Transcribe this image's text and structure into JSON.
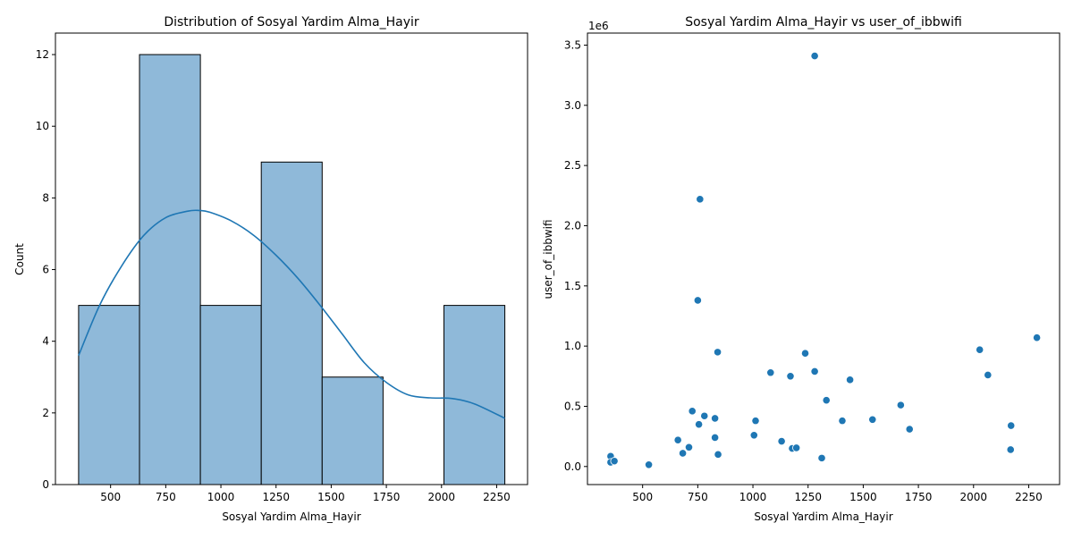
{
  "chart_data": [
    {
      "type": "histogram",
      "title": "Distribution of Sosyal Yardim Alma_Hayir",
      "xlabel": "Sosyal Yardim Alma_Hayir",
      "ylabel": "Count",
      "xlim": [
        250,
        2390
      ],
      "ylim": [
        0,
        12.6
      ],
      "xticks": [
        500,
        750,
        1000,
        1250,
        1500,
        1750,
        2000,
        2250
      ],
      "yticks": [
        0,
        2,
        4,
        6,
        8,
        10,
        12
      ],
      "bin_edges": [
        355,
        631,
        907,
        1183,
        1459,
        1735,
        2011,
        2287
      ],
      "counts": [
        5,
        12,
        5,
        9,
        3,
        0,
        5
      ],
      "kde": {
        "x": [
          355,
          450,
          550,
          650,
          750,
          850,
          900,
          950,
          1050,
          1150,
          1250,
          1350,
          1450,
          1550,
          1650,
          1750,
          1850,
          1950,
          2050,
          2150,
          2287
        ],
        "y": [
          3.6,
          5.0,
          6.1,
          6.95,
          7.45,
          7.63,
          7.65,
          7.6,
          7.35,
          6.95,
          6.4,
          5.75,
          5.0,
          4.2,
          3.4,
          2.85,
          2.5,
          2.42,
          2.4,
          2.25,
          1.85
        ]
      },
      "colors": {
        "bar_fill": "#8fb9d9",
        "line": "#1f77b4"
      }
    },
    {
      "type": "scatter",
      "title": "Sosyal Yardim Alma_Hayir vs user_of_ibbwifi",
      "xlabel": "Sosyal Yardim Alma_Hayir",
      "ylabel": "user_of_ibbwifi",
      "offset_label": "1e6",
      "xlim": [
        250,
        2390
      ],
      "ylim": [
        -0.15,
        3.6
      ],
      "xticks": [
        500,
        750,
        1000,
        1250,
        1500,
        1750,
        2000,
        2250
      ],
      "yticks": [
        0.0,
        0.5,
        1.0,
        1.5,
        2.0,
        2.5,
        3.0,
        3.5
      ],
      "points": [
        [
          1280,
          3.41
        ],
        [
          760,
          2.22
        ],
        [
          750,
          1.38
        ],
        [
          2287,
          1.07
        ],
        [
          2028,
          0.97
        ],
        [
          840,
          0.95
        ],
        [
          1237,
          0.94
        ],
        [
          1080,
          0.78
        ],
        [
          1280,
          0.79
        ],
        [
          1170,
          0.75
        ],
        [
          2065,
          0.76
        ],
        [
          1440,
          0.72
        ],
        [
          1333,
          0.55
        ],
        [
          1670,
          0.51
        ],
        [
          725,
          0.46
        ],
        [
          780,
          0.42
        ],
        [
          828,
          0.4
        ],
        [
          1012,
          0.38
        ],
        [
          1405,
          0.38
        ],
        [
          1542,
          0.39
        ],
        [
          755,
          0.35
        ],
        [
          2170,
          0.34
        ],
        [
          1710,
          0.31
        ],
        [
          1005,
          0.26
        ],
        [
          660,
          0.22
        ],
        [
          828,
          0.24
        ],
        [
          1130,
          0.21
        ],
        [
          710,
          0.16
        ],
        [
          1178,
          0.15
        ],
        [
          1197,
          0.155
        ],
        [
          682,
          0.11
        ],
        [
          842,
          0.1
        ],
        [
          2168,
          0.14
        ],
        [
          1312,
          0.07
        ],
        [
          355,
          0.085
        ],
        [
          355,
          0.035
        ],
        [
          372,
          0.045
        ],
        [
          528,
          0.015
        ]
      ],
      "colors": {
        "point": "#1f77b4"
      }
    }
  ]
}
